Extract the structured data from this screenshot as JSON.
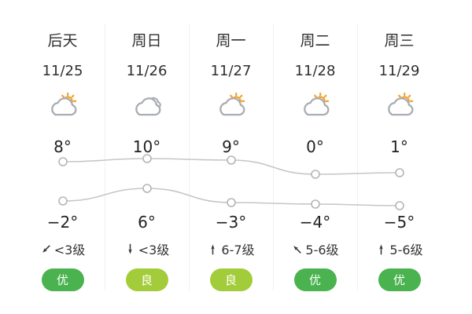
{
  "widget": {
    "name": "5-day-weather-forecast"
  },
  "columns": [
    {
      "day": "后天",
      "date": "11/25",
      "condition": "partly-cloudy-icon",
      "high_label": "8°",
      "low_label": "−2°",
      "wind_dir_deg": 225,
      "wind_level": "<3级",
      "aqi": {
        "label": "优",
        "color": "#4ab34f"
      }
    },
    {
      "day": "周日",
      "date": "11/26",
      "condition": "cloudy-icon",
      "high_label": "10°",
      "low_label": "6°",
      "wind_dir_deg": 180,
      "wind_level": "<3级",
      "aqi": {
        "label": "良",
        "color": "#a3cc3a"
      }
    },
    {
      "day": "周一",
      "date": "11/27",
      "condition": "partly-cloudy-icon",
      "high_label": "9°",
      "low_label": "−3°",
      "wind_dir_deg": 0,
      "wind_level": "6-7级",
      "aqi": {
        "label": "良",
        "color": "#a3cc3a"
      }
    },
    {
      "day": "周二",
      "date": "11/28",
      "condition": "partly-cloudy-icon",
      "high_label": "0°",
      "low_label": "−4°",
      "wind_dir_deg": 315,
      "wind_level": "5-6级",
      "aqi": {
        "label": "优",
        "color": "#4ab34f"
      }
    },
    {
      "day": "周三",
      "date": "11/29",
      "condition": "partly-cloudy-icon",
      "high_label": "1°",
      "low_label": "−5°",
      "wind_dir_deg": 0,
      "wind_level": "5-6级",
      "aqi": {
        "label": "优",
        "color": "#4ab34f"
      }
    }
  ],
  "chart_data": {
    "type": "line",
    "categories": [
      "11/25",
      "11/26",
      "11/27",
      "11/28",
      "11/29"
    ],
    "series": [
      {
        "name": "high",
        "values": [
          8,
          10,
          9,
          0,
          1
        ],
        "labels": [
          "8°",
          "10°",
          "9°",
          "0°",
          "1°"
        ]
      },
      {
        "name": "low",
        "values": [
          -2,
          6,
          -3,
          -4,
          -5
        ],
        "labels": [
          "−2°",
          "6°",
          "−3°",
          "−4°",
          "−5°"
        ]
      }
    ],
    "title": "",
    "xlabel": "",
    "ylabel": "",
    "grid": false,
    "legend": "none",
    "line_color": "#c6c6c6",
    "dot_fill": "#ffffff",
    "dot_stroke": "#b5b5b5"
  }
}
